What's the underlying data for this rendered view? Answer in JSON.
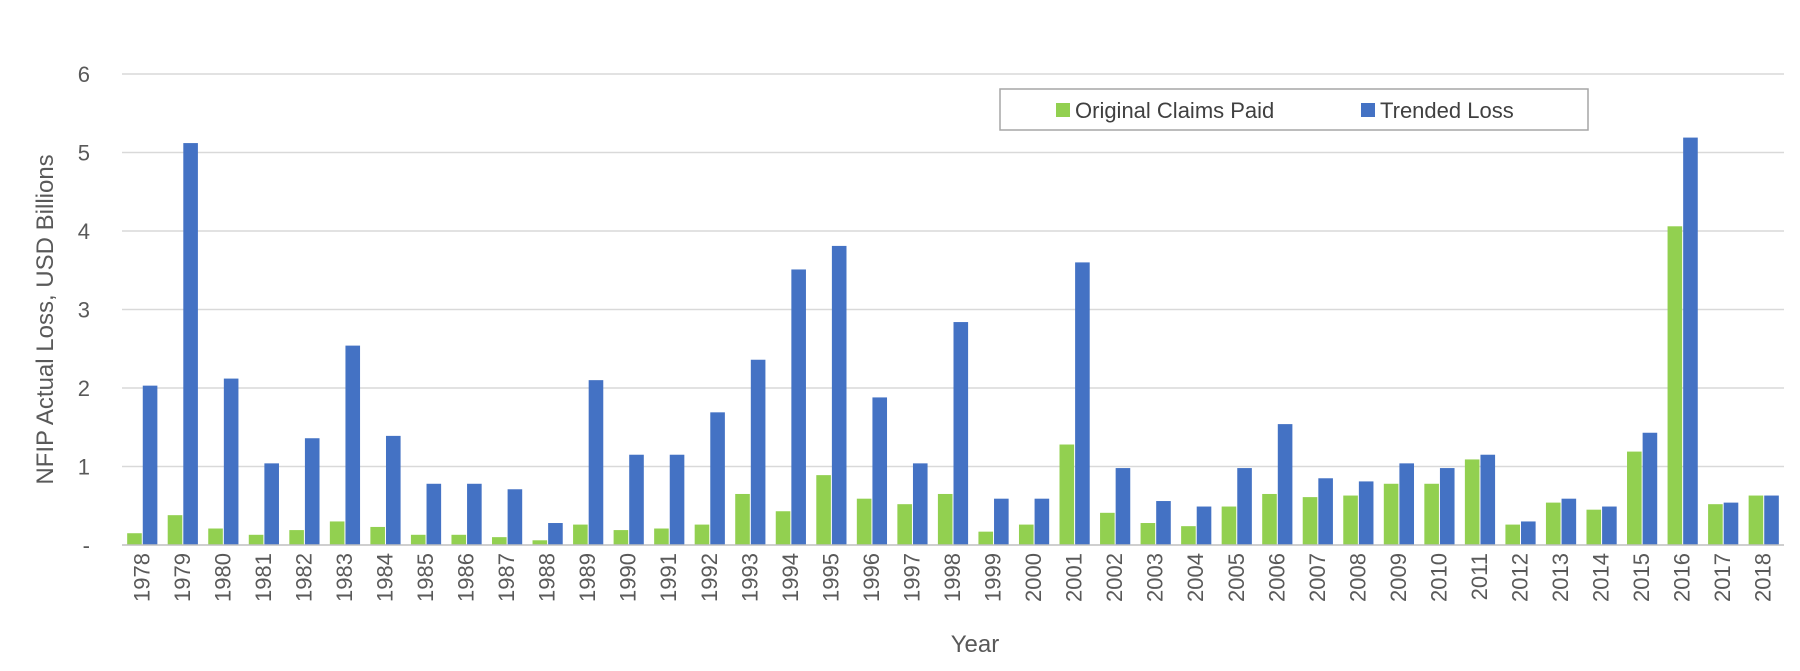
{
  "chart_data": {
    "type": "bar",
    "xlabel": "Year",
    "ylabel": "NFIP Actual Loss, USD Billions",
    "ylim": [
      0,
      6
    ],
    "yticks": [
      {
        "value": 0,
        "label": "-"
      },
      {
        "value": 1,
        "label": "1"
      },
      {
        "value": 2,
        "label": "2"
      },
      {
        "value": 3,
        "label": "3"
      },
      {
        "value": 4,
        "label": "4"
      },
      {
        "value": 5,
        "label": "5"
      },
      {
        "value": 6,
        "label": "6"
      }
    ],
    "grid": true,
    "legend_position": "top-right",
    "categories": [
      "1978",
      "1979",
      "1980",
      "1981",
      "1982",
      "1983",
      "1984",
      "1985",
      "1986",
      "1987",
      "1988",
      "1989",
      "1990",
      "1991",
      "1992",
      "1993",
      "1994",
      "1995",
      "1996",
      "1997",
      "1998",
      "1999",
      "2000",
      "2001",
      "2002",
      "2003",
      "2004",
      "2005",
      "2006",
      "2007",
      "2008",
      "2009",
      "2010",
      "2011",
      "2012",
      "2013",
      "2014",
      "2015",
      "2016",
      "2017",
      "2018"
    ],
    "series": [
      {
        "name": "Original Claims Paid",
        "color": "#92d050",
        "values": [
          0.15,
          0.38,
          0.21,
          0.13,
          0.19,
          0.3,
          0.23,
          0.13,
          0.13,
          0.1,
          0.06,
          0.26,
          0.19,
          0.21,
          0.26,
          0.65,
          0.43,
          0.89,
          0.59,
          0.52,
          0.65,
          0.17,
          0.26,
          1.28,
          0.41,
          0.28,
          0.24,
          0.49,
          0.65,
          0.61,
          0.63,
          0.78,
          0.78,
          1.09,
          0.26,
          0.54,
          0.45,
          1.19,
          4.06,
          0.52,
          0.63
        ]
      },
      {
        "name": "Trended Loss",
        "color": "#4472c4",
        "values": [
          2.03,
          5.12,
          2.12,
          1.04,
          1.36,
          2.54,
          1.39,
          0.78,
          0.78,
          0.71,
          0.28,
          2.1,
          1.15,
          1.15,
          1.69,
          2.36,
          3.51,
          3.81,
          1.88,
          1.04,
          2.84,
          0.59,
          0.59,
          3.6,
          0.98,
          0.56,
          0.49,
          0.98,
          1.54,
          0.85,
          0.81,
          1.04,
          0.98,
          1.15,
          0.3,
          0.59,
          0.49,
          1.43,
          5.19,
          0.54,
          0.63
        ]
      }
    ]
  }
}
